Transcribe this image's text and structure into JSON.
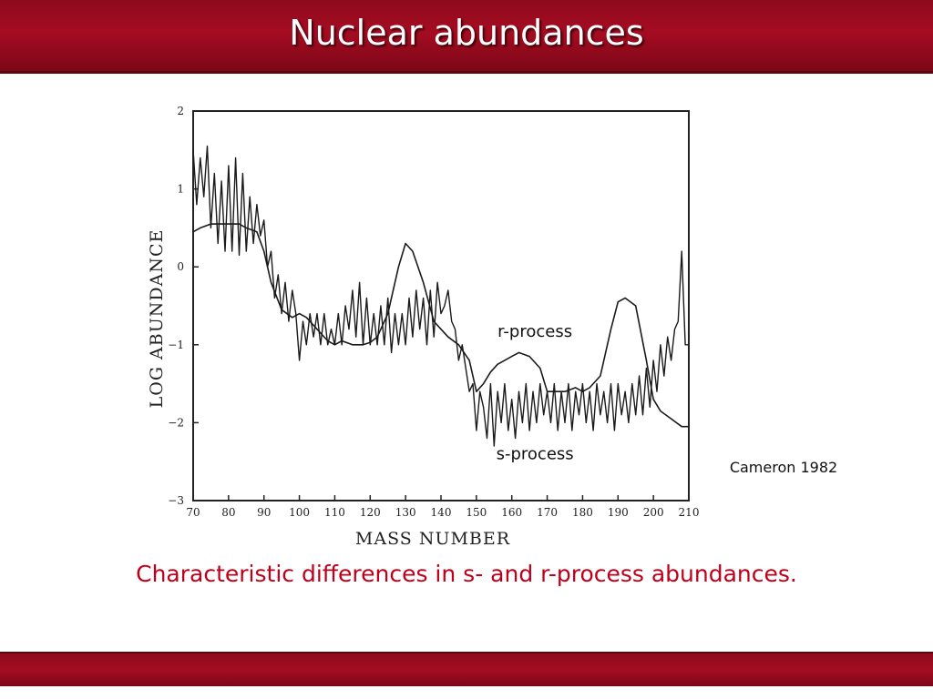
{
  "slide": {
    "title": "Nuclear abundances",
    "caption": "Characteristic differences in s- and r-process abundances.",
    "citation": "Cameron 1982",
    "accent_color": "#a50c22",
    "caption_color": "#c0001a"
  },
  "chart_data": {
    "type": "line",
    "xlabel": "MASS NUMBER",
    "ylabel": "LOG ABUNDANCE",
    "xlim": [
      70,
      210
    ],
    "ylim": [
      -3,
      2
    ],
    "xticks": [
      70,
      80,
      90,
      100,
      110,
      120,
      130,
      140,
      150,
      160,
      170,
      180,
      190,
      200,
      210
    ],
    "yticks": [
      2,
      1,
      0,
      -1,
      -2,
      -3
    ],
    "ytick_labels": [
      "2",
      "1",
      "0",
      "−1",
      "−2",
      "−3"
    ],
    "grid": false,
    "annotations": [
      {
        "text": "r-process",
        "x": 150,
        "y": -0.9
      },
      {
        "text": "s-process",
        "x": 150,
        "y": -2.47
      }
    ],
    "series": [
      {
        "name": "r-process",
        "style": "smooth",
        "x": [
          70,
          72,
          75,
          78,
          80,
          83,
          85,
          88,
          90,
          92,
          95,
          98,
          100,
          102,
          105,
          108,
          110,
          112,
          115,
          118,
          120,
          122,
          125,
          128,
          130,
          132,
          135,
          138,
          140,
          142,
          145,
          148,
          150,
          152,
          154,
          156,
          158,
          160,
          162,
          165,
          168,
          170,
          172,
          175,
          178,
          180,
          182,
          185,
          188,
          190,
          192,
          195,
          198,
          200,
          202,
          205,
          208,
          210
        ],
        "y": [
          0.45,
          0.5,
          0.55,
          0.55,
          0.55,
          0.55,
          0.5,
          0.45,
          0.2,
          -0.2,
          -0.55,
          -0.65,
          -0.6,
          -0.65,
          -0.8,
          -0.95,
          -1.0,
          -0.95,
          -1.0,
          -1.0,
          -0.97,
          -0.9,
          -0.6,
          0.0,
          0.3,
          0.2,
          -0.2,
          -0.7,
          -0.8,
          -0.9,
          -1.0,
          -1.2,
          -1.6,
          -1.5,
          -1.35,
          -1.25,
          -1.2,
          -1.15,
          -1.1,
          -1.15,
          -1.3,
          -1.6,
          -1.6,
          -1.6,
          -1.55,
          -1.6,
          -1.55,
          -1.4,
          -0.8,
          -0.45,
          -0.4,
          -0.5,
          -1.2,
          -1.7,
          -1.85,
          -1.95,
          -2.05,
          -2.05
        ]
      },
      {
        "name": "s-process",
        "style": "jagged",
        "x": [
          70,
          71,
          72,
          73,
          74,
          75,
          76,
          77,
          78,
          79,
          80,
          81,
          82,
          83,
          84,
          85,
          86,
          87,
          88,
          89,
          90,
          91,
          92,
          93,
          94,
          95,
          96,
          97,
          98,
          99,
          100,
          101,
          102,
          103,
          104,
          105,
          106,
          107,
          108,
          109,
          110,
          111,
          112,
          113,
          114,
          115,
          116,
          117,
          118,
          119,
          120,
          121,
          122,
          123,
          124,
          125,
          126,
          127,
          128,
          129,
          130,
          131,
          132,
          133,
          134,
          135,
          136,
          137,
          138,
          139,
          140,
          141,
          142,
          143,
          144,
          145,
          146,
          147,
          148,
          149,
          150,
          151,
          152,
          153,
          154,
          155,
          156,
          157,
          158,
          159,
          160,
          161,
          162,
          163,
          164,
          165,
          166,
          167,
          168,
          169,
          170,
          171,
          172,
          173,
          174,
          175,
          176,
          177,
          178,
          179,
          180,
          181,
          182,
          183,
          184,
          185,
          186,
          187,
          188,
          189,
          190,
          191,
          192,
          193,
          194,
          195,
          196,
          197,
          198,
          199,
          200,
          201,
          202,
          203,
          204,
          205,
          206,
          207,
          208,
          209,
          210
        ],
        "y": [
          1.5,
          0.8,
          1.4,
          0.9,
          1.55,
          0.5,
          1.2,
          0.3,
          1.1,
          0.2,
          1.3,
          0.2,
          1.4,
          0.15,
          1.2,
          0.2,
          0.9,
          0.3,
          0.8,
          0.4,
          0.6,
          0.0,
          0.2,
          -0.4,
          -0.1,
          -0.6,
          -0.2,
          -0.7,
          -0.3,
          -0.6,
          -1.2,
          -0.7,
          -1.0,
          -0.6,
          -0.9,
          -0.6,
          -1.0,
          -0.6,
          -1.0,
          -0.8,
          -1.0,
          -0.6,
          -1.0,
          -0.5,
          -0.8,
          -0.3,
          -0.9,
          -0.2,
          -1.0,
          -0.4,
          -1.0,
          -0.6,
          -1.0,
          -0.5,
          -1.0,
          -0.4,
          -1.1,
          -0.6,
          -1.0,
          -0.6,
          -1.0,
          -0.4,
          -0.9,
          -0.3,
          -0.8,
          -0.4,
          -1.0,
          -0.3,
          -0.9,
          -0.2,
          -0.6,
          -0.5,
          -0.3,
          -0.7,
          -0.8,
          -1.2,
          -1.0,
          -1.3,
          -1.6,
          -1.5,
          -2.1,
          -1.6,
          -1.8,
          -2.2,
          -1.5,
          -2.3,
          -1.6,
          -2.0,
          -1.5,
          -2.1,
          -1.7,
          -2.2,
          -1.6,
          -2.0,
          -1.5,
          -2.1,
          -1.6,
          -2.0,
          -1.5,
          -1.9,
          -1.6,
          -2.0,
          -1.5,
          -2.1,
          -1.6,
          -2.0,
          -1.5,
          -2.1,
          -1.6,
          -1.9,
          -1.5,
          -2.0,
          -1.6,
          -2.1,
          -1.5,
          -1.9,
          -1.6,
          -2.0,
          -1.5,
          -2.1,
          -1.5,
          -1.9,
          -1.6,
          -2.0,
          -1.5,
          -1.9,
          -1.4,
          -1.9,
          -1.3,
          -1.8,
          -1.2,
          -1.6,
          -1.0,
          -1.4,
          -0.9,
          -1.2,
          -0.8,
          -0.7,
          0.2,
          -1.0,
          -1.0
        ]
      }
    ]
  }
}
